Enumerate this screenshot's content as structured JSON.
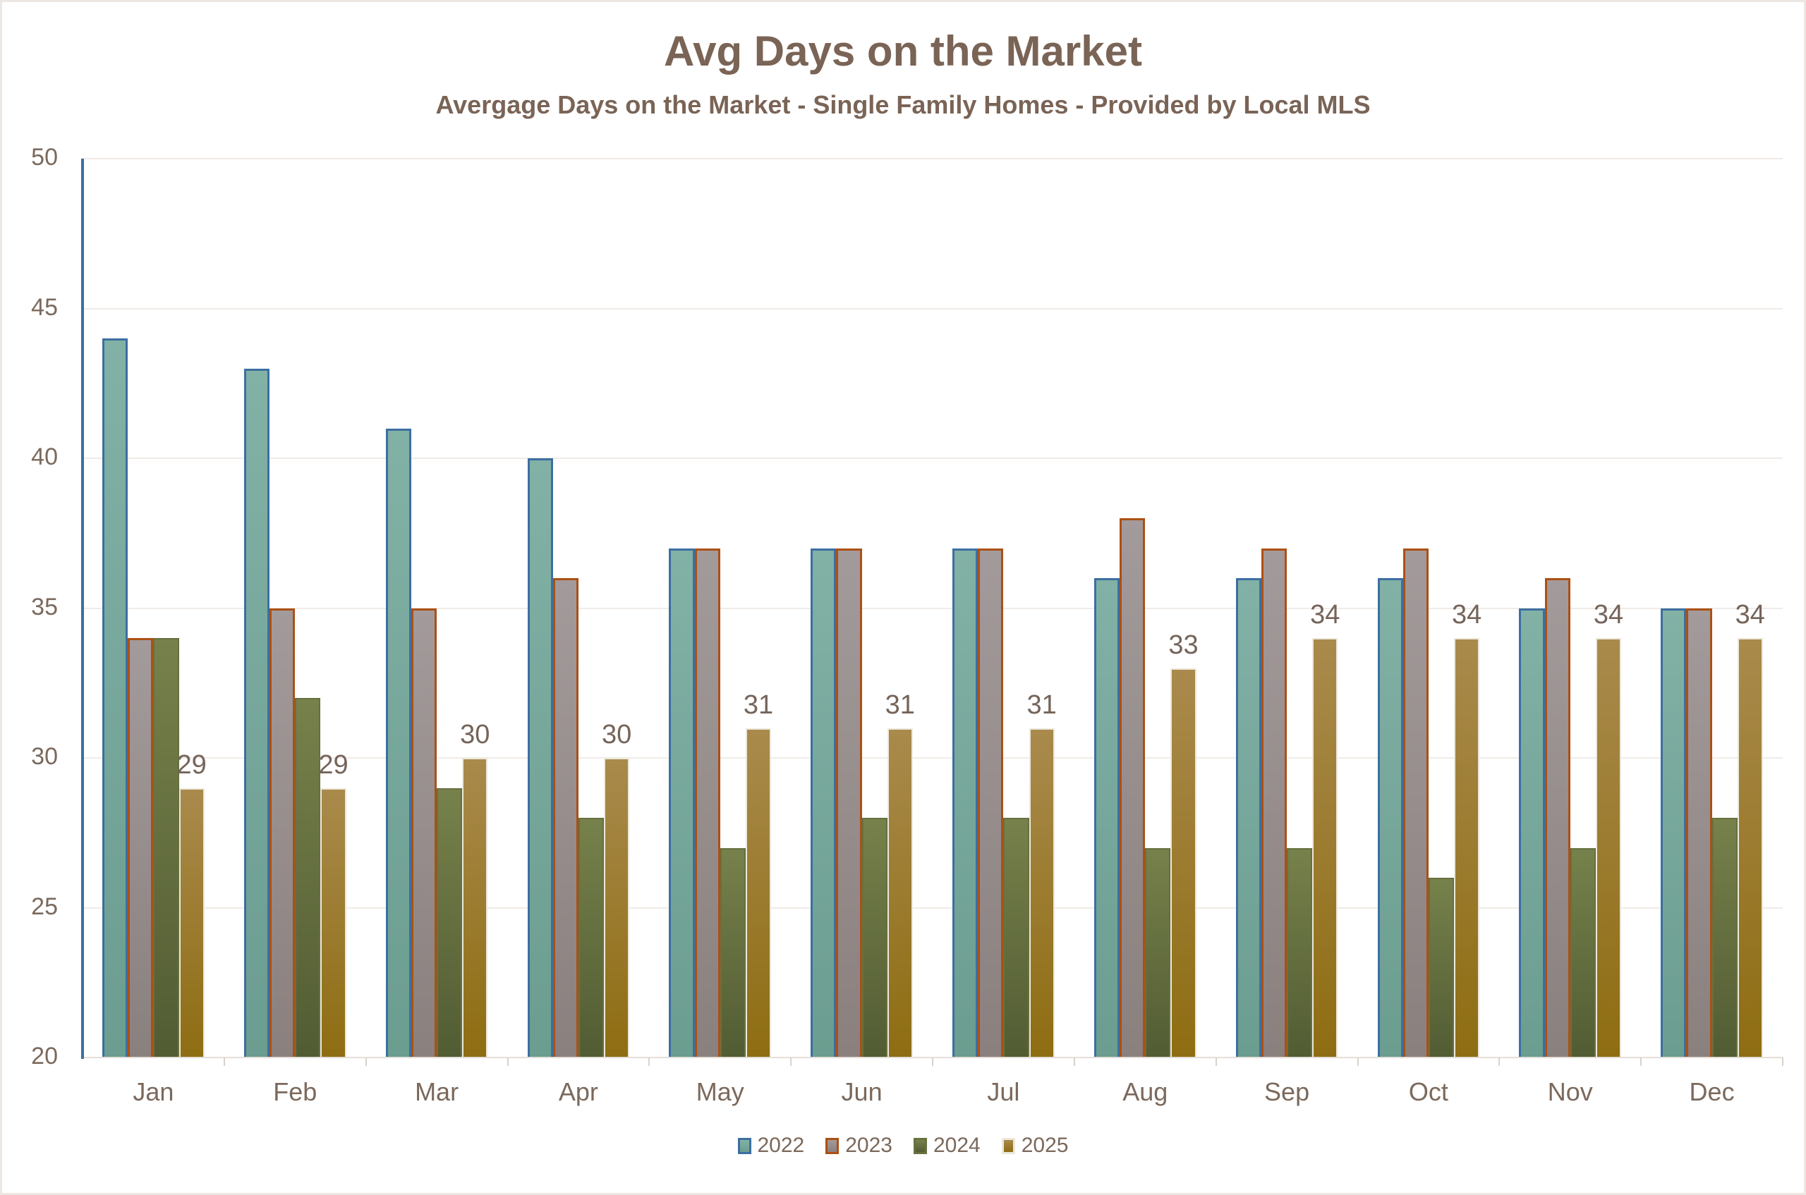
{
  "header": {
    "title": "Avg Days on the Market",
    "subtitle": "Avergage Days on the Market - Single Family Homes - Provided by Local MLS"
  },
  "chart_data": {
    "type": "bar",
    "title": "Avg Days on the Market",
    "subtitle": "Avergage Days on the Market - Single Family Homes - Provided by Local MLS",
    "categories": [
      "Jan",
      "Feb",
      "Mar",
      "Apr",
      "May",
      "Jun",
      "Jul",
      "Aug",
      "Sep",
      "Oct",
      "Nov",
      "Dec"
    ],
    "series": [
      {
        "name": "2022",
        "values": [
          44,
          43,
          41,
          40,
          37,
          37,
          37,
          36,
          36,
          36,
          35,
          35
        ],
        "fill_top": "#82B1A6",
        "fill_bottom": "#6B9D90",
        "border": "#3C6FA1",
        "border_width": 3,
        "show_labels": false
      },
      {
        "name": "2023",
        "values": [
          34,
          35,
          35,
          36,
          37,
          37,
          37,
          38,
          37,
          37,
          36,
          35
        ],
        "fill_top": "#A39A9B",
        "fill_bottom": "#8A807E",
        "border": "#AC5014",
        "border_width": 3,
        "show_labels": false
      },
      {
        "name": "2024",
        "values": [
          34,
          32,
          29,
          28,
          27,
          28,
          28,
          27,
          27,
          26,
          27,
          28
        ],
        "fill_top": "#76814B",
        "fill_bottom": "#525C33",
        "border": "#66713F",
        "border_width": 2,
        "show_labels": false
      },
      {
        "name": "2025",
        "values": [
          29,
          29,
          30,
          30,
          31,
          31,
          31,
          33,
          34,
          34,
          34,
          34
        ],
        "fill_top": "#A98A4C",
        "fill_bottom": "#8E6D12",
        "border": "#ECE8DC",
        "border_width": 2,
        "show_labels": true
      }
    ],
    "ylim": [
      20,
      50
    ],
    "yticks": [
      20,
      25,
      30,
      35,
      40,
      45,
      50
    ],
    "grid": true,
    "legend_position": "bottom",
    "colors": {
      "axis_line": "#3C6FA1",
      "gridline": "#F0EBE7",
      "baseline": "#E5DFD9",
      "tick": "#D8D2CB",
      "axis_label": "#7B695C",
      "data_label": "#75645A",
      "title_text": "#7A6456"
    }
  }
}
